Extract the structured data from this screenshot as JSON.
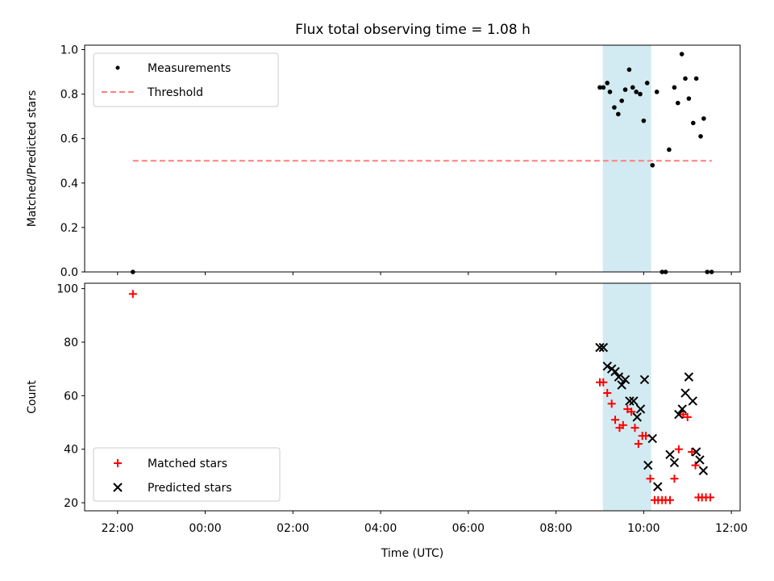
{
  "chart_data": {
    "title": "Flux total observing time = 1.08 h",
    "xlabel": "Time (UTC)",
    "x_tick_labels": [
      "22:00",
      "00:00",
      "02:00",
      "04:00",
      "06:00",
      "08:00",
      "10:00",
      "12:00"
    ],
    "x_unit": "hours since 22:00",
    "x_tick_values": [
      0,
      2,
      4,
      6,
      8,
      10,
      12,
      14
    ],
    "xlim": [
      -0.75,
      14.2
    ],
    "shaded_interval": [
      11.07,
      12.17
    ],
    "colors": {
      "measurement": "#000000",
      "threshold": "#ff7f7f",
      "matched": "#ff0000",
      "predicted": "#000000",
      "shade": "#add8e6"
    },
    "panels": [
      {
        "type": "scatter",
        "ylabel": "Matched/Predicted stars",
        "ylim": [
          0,
          1.02
        ],
        "y_tick_labels": [
          "0.0",
          "0.2",
          "0.4",
          "0.6",
          "0.8",
          "1.0"
        ],
        "y_tick_values": [
          0,
          0.2,
          0.4,
          0.6,
          0.8,
          1.0
        ],
        "legend": [
          "Measurements",
          "Threshold"
        ],
        "legend_position": "upper-left",
        "series": [
          {
            "name": "Measurements",
            "type": "scatter",
            "marker": "dot",
            "points": [
              [
                0.35,
                0.0
              ],
              [
                11.0,
                0.83
              ],
              [
                11.08,
                0.83
              ],
              [
                11.17,
                0.85
              ],
              [
                11.23,
                0.81
              ],
              [
                11.33,
                0.74
              ],
              [
                11.42,
                0.71
              ],
              [
                11.5,
                0.77
              ],
              [
                11.58,
                0.82
              ],
              [
                11.67,
                0.91
              ],
              [
                11.75,
                0.83
              ],
              [
                11.83,
                0.81
              ],
              [
                11.92,
                0.8
              ],
              [
                12.0,
                0.68
              ],
              [
                12.08,
                0.85
              ],
              [
                12.2,
                0.48
              ],
              [
                12.3,
                0.81
              ],
              [
                12.42,
                0.0
              ],
              [
                12.5,
                0.0
              ],
              [
                12.58,
                0.55
              ],
              [
                12.7,
                0.83
              ],
              [
                12.78,
                0.76
              ],
              [
                12.87,
                0.98
              ],
              [
                12.95,
                0.87
              ],
              [
                13.03,
                0.78
              ],
              [
                13.13,
                0.67
              ],
              [
                13.2,
                0.87
              ],
              [
                13.3,
                0.61
              ],
              [
                13.37,
                0.69
              ],
              [
                13.45,
                0.0
              ],
              [
                13.55,
                0.0
              ]
            ]
          },
          {
            "name": "Threshold",
            "type": "line",
            "style": "dashed",
            "points": [
              [
                0.35,
                0.5
              ],
              [
                13.55,
                0.5
              ]
            ]
          }
        ]
      },
      {
        "type": "scatter",
        "ylabel": "Count",
        "ylim": [
          17,
          102
        ],
        "y_tick_labels": [
          "20",
          "40",
          "60",
          "80",
          "100"
        ],
        "y_tick_values": [
          20,
          40,
          60,
          80,
          100
        ],
        "legend": [
          "Matched stars",
          "Predicted stars"
        ],
        "legend_position": "lower-left",
        "series": [
          {
            "name": "Matched stars",
            "type": "scatter",
            "marker": "plus",
            "points": [
              [
                0.35,
                98
              ],
              [
                11.0,
                65
              ],
              [
                11.08,
                65
              ],
              [
                11.17,
                61
              ],
              [
                11.27,
                57
              ],
              [
                11.35,
                51
              ],
              [
                11.45,
                48
              ],
              [
                11.53,
                49
              ],
              [
                11.63,
                55
              ],
              [
                11.72,
                54
              ],
              [
                11.8,
                48
              ],
              [
                11.88,
                42
              ],
              [
                11.97,
                45
              ],
              [
                12.05,
                45
              ],
              [
                12.15,
                29
              ],
              [
                12.25,
                21
              ],
              [
                12.33,
                21
              ],
              [
                12.42,
                21
              ],
              [
                12.5,
                21
              ],
              [
                12.6,
                21
              ],
              [
                12.7,
                29
              ],
              [
                12.8,
                40
              ],
              [
                12.9,
                53
              ],
              [
                13.0,
                52
              ],
              [
                13.1,
                39
              ],
              [
                13.18,
                34
              ],
              [
                13.25,
                22
              ],
              [
                13.33,
                22
              ],
              [
                13.42,
                22
              ],
              [
                13.52,
                22
              ]
            ]
          },
          {
            "name": "Predicted stars",
            "type": "scatter",
            "marker": "x",
            "points": [
              [
                11.0,
                78
              ],
              [
                11.08,
                78
              ],
              [
                11.17,
                71
              ],
              [
                11.27,
                70
              ],
              [
                11.35,
                69
              ],
              [
                11.43,
                67
              ],
              [
                11.5,
                64
              ],
              [
                11.58,
                66
              ],
              [
                11.68,
                58
              ],
              [
                11.77,
                58
              ],
              [
                11.85,
                52
              ],
              [
                11.93,
                55
              ],
              [
                12.02,
                66
              ],
              [
                12.1,
                34
              ],
              [
                12.2,
                44
              ],
              [
                12.32,
                26
              ],
              [
                12.6,
                38
              ],
              [
                12.7,
                35
              ],
              [
                12.8,
                53
              ],
              [
                12.88,
                55
              ],
              [
                12.95,
                61
              ],
              [
                13.03,
                67
              ],
              [
                13.12,
                58
              ],
              [
                13.2,
                39
              ],
              [
                13.28,
                36
              ],
              [
                13.36,
                32
              ]
            ]
          }
        ]
      }
    ]
  }
}
